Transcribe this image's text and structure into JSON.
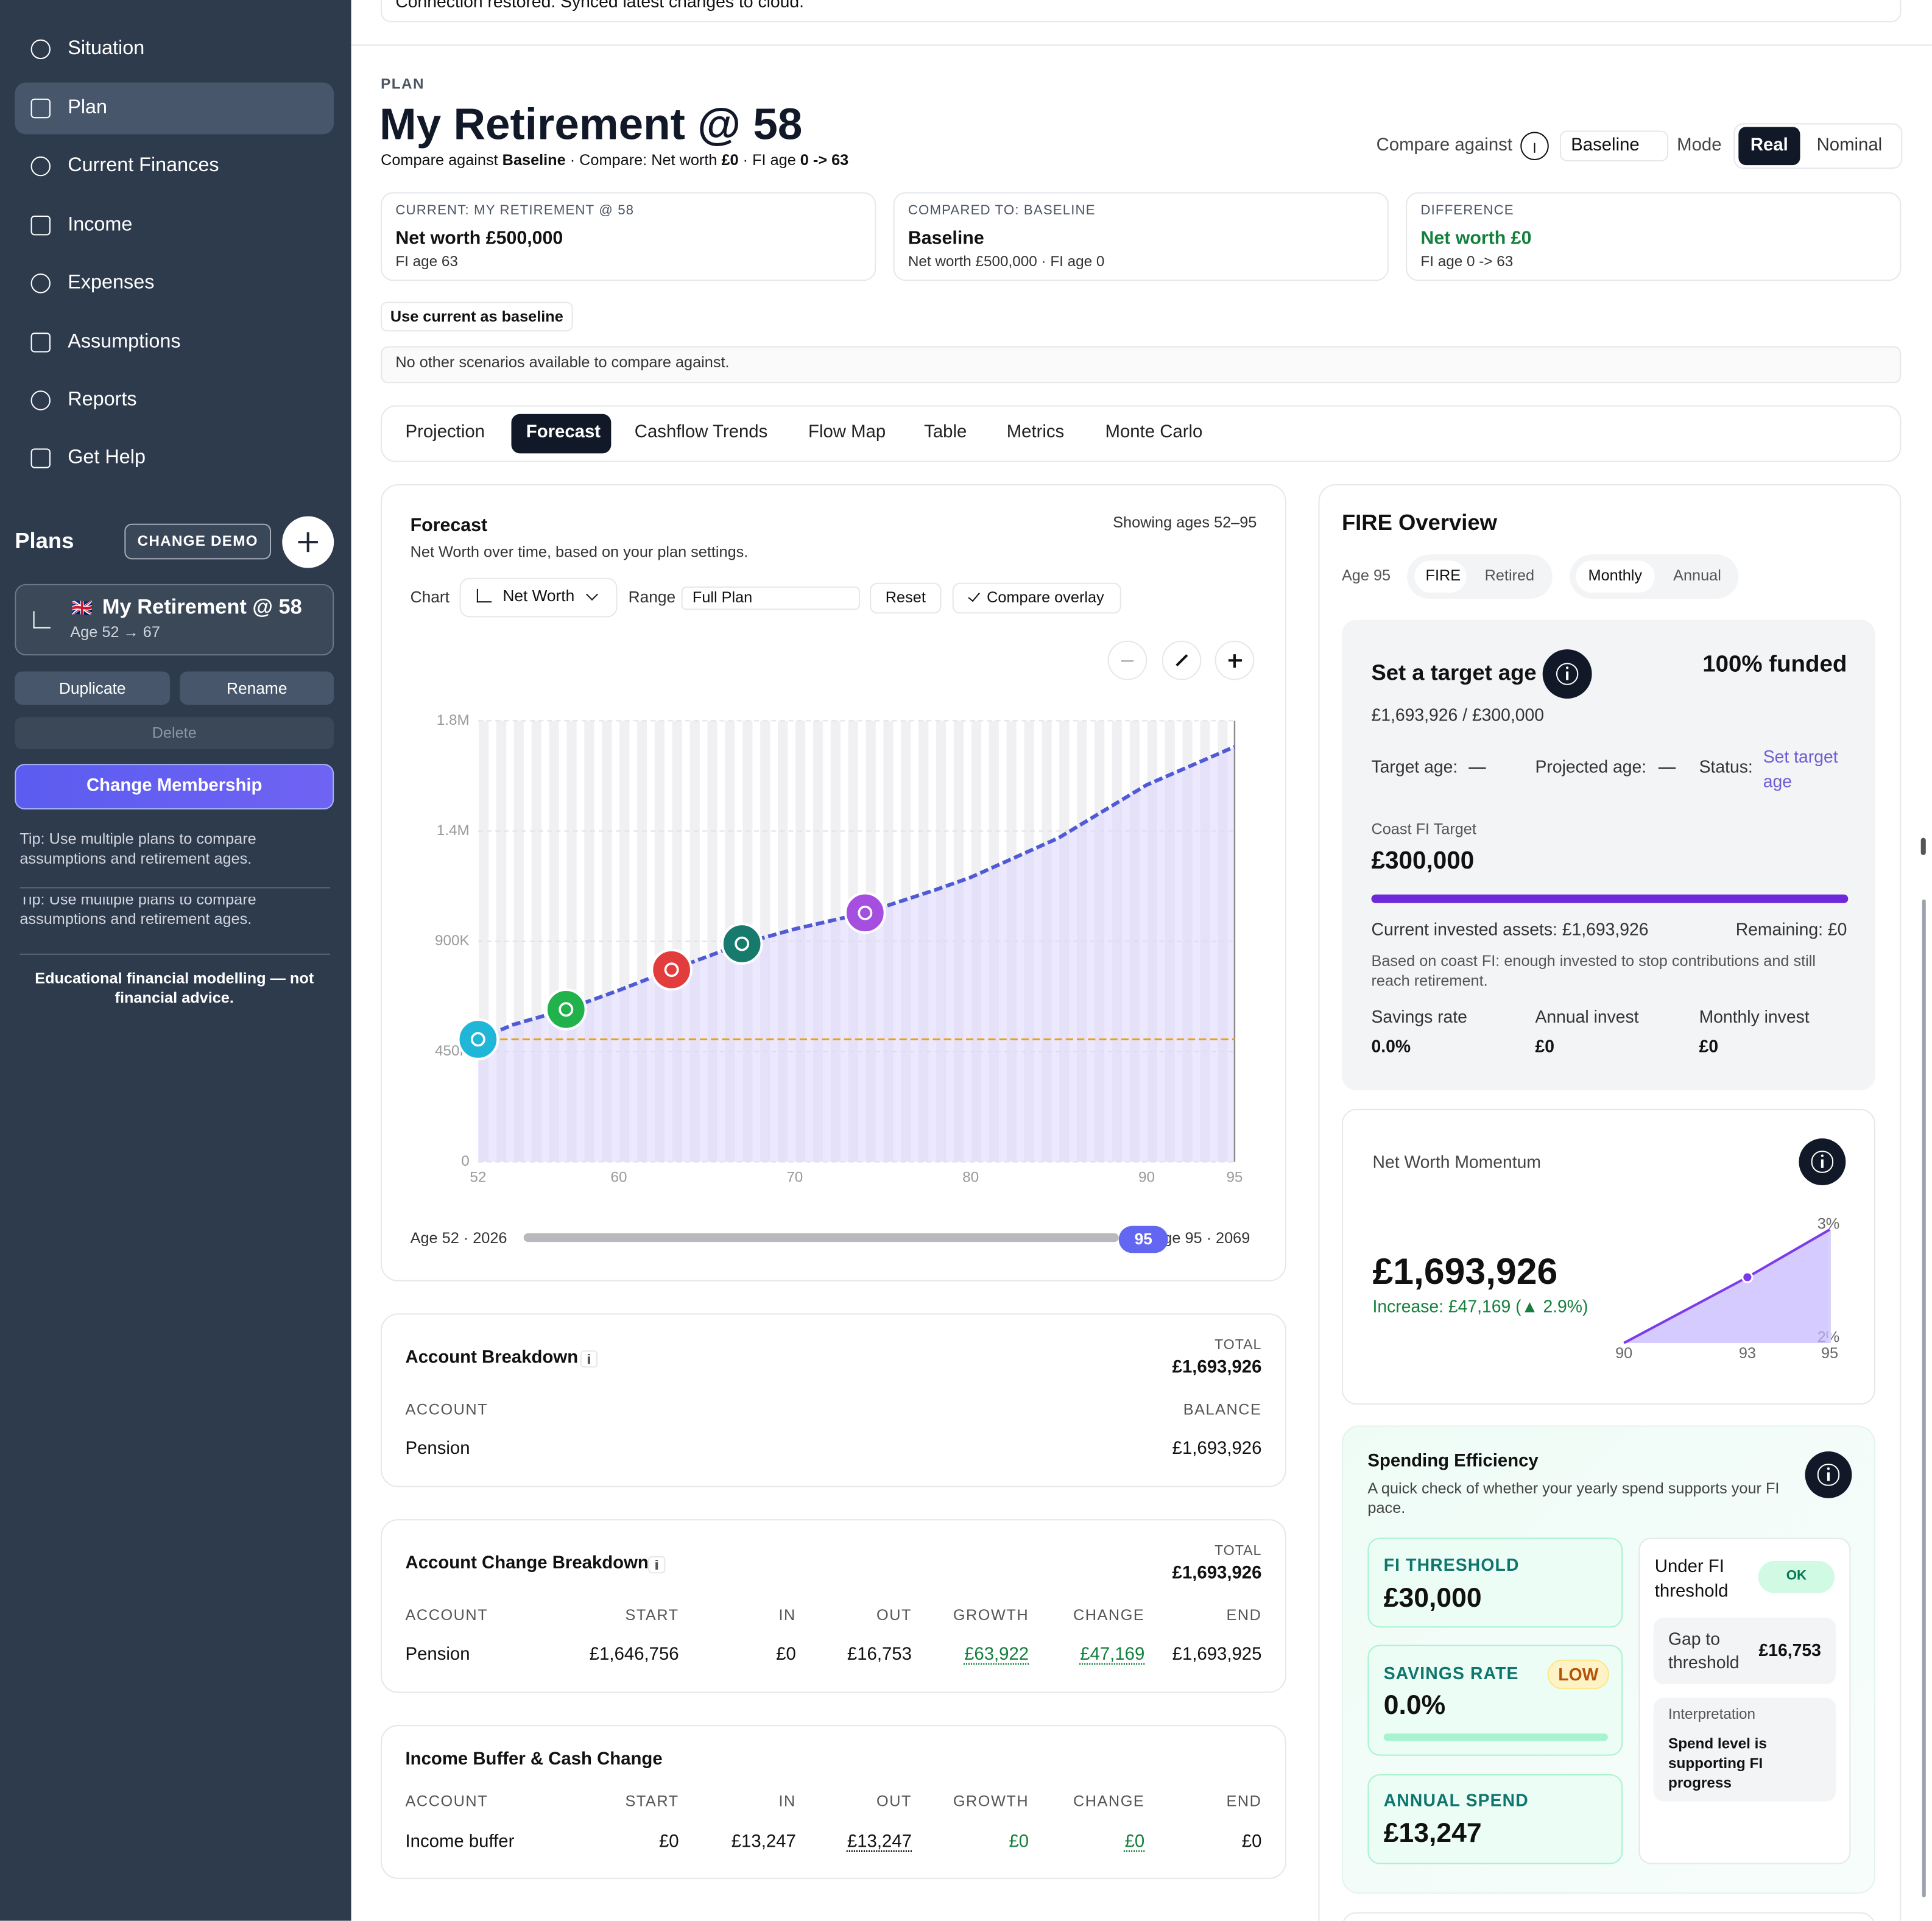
{
  "banner": "Connection restored. Synced latest changes to cloud.",
  "sidebar": {
    "nav": [
      "Situation",
      "Plan",
      "Current Finances",
      "Income",
      "Expenses",
      "Assumptions",
      "Reports",
      "Get Help"
    ],
    "plans_title": "Plans",
    "change_demo": "CHANGE DEMO",
    "plan": {
      "flag": "🇬🇧",
      "name": "My Retirement @ 58",
      "ages": "Age 52 → 67"
    },
    "actions": [
      "Duplicate",
      "Rename"
    ],
    "delete": "Delete",
    "membership": "Change Membership",
    "tips": [
      "Tip: Use multiple plans to compare assumptions and retirement ages.",
      "Tip: Use multiple plans to compare assumptions and retirement ages."
    ],
    "disclaimer": "Educational financial modelling — not financial advice."
  },
  "header": {
    "eyebrow": "PLAN",
    "title": "My Retirement @ 58",
    "subtitle": [
      "Compare against ",
      "Baseline",
      " · Compare: Net worth ",
      "£0",
      " · FI age ",
      "0 -> 63"
    ],
    "compare_label": "Compare against",
    "compare_value": "Baseline",
    "mode_label": "Mode",
    "modes": [
      "Real",
      "Nominal"
    ]
  },
  "summary": [
    {
      "label": "CURRENT: MY RETIREMENT @ 58",
      "value": "Net worth £500,000",
      "detail": "FI age 63"
    },
    {
      "label": "COMPARED TO: BASELINE",
      "value": "Baseline",
      "detail": "Net worth £500,000 · FI age 0"
    },
    {
      "label": "DIFFERENCE",
      "value": "Net worth £0",
      "detail": "FI age 0 -> 63"
    }
  ],
  "baseline_button": "Use current as baseline",
  "notice": "No other scenarios available to compare against.",
  "tabs": [
    "Projection",
    "Forecast",
    "Cashflow Trends",
    "Flow Map",
    "Table",
    "Metrics",
    "Monte Carlo"
  ],
  "forecast": {
    "title": "Forecast",
    "subtitle": "Net Worth over time, based on your plan settings.",
    "range_note": "Showing ages 52–95",
    "chart_label": "Chart",
    "chart_value": "Net Worth",
    "range_label": "Range",
    "range_value": "Full Plan",
    "reset": "Reset",
    "overlay": "Compare overlay",
    "slider_start": "Age 52 · 2026",
    "slider_value": "95",
    "slider_end": "Age 95 · 2069"
  },
  "chart_data": [
    {
      "type": "line",
      "area": true,
      "x": [
        52,
        54,
        57,
        60,
        63,
        67,
        70,
        74,
        78,
        80,
        85,
        90,
        95
      ],
      "values": [
        500000,
        560000,
        622000,
        700000,
        784000,
        890000,
        950000,
        1016000,
        1110000,
        1161000,
        1322000,
        1538000,
        1693926
      ],
      "color": "#4f5bd5",
      "area_color": "#ddd6fe",
      "xlim": [
        52,
        95
      ],
      "xticks": [
        52,
        60,
        70,
        80,
        90,
        95
      ],
      "ylim": [
        0,
        1800000
      ],
      "yticks": [
        0,
        {
          "value": 450000,
          "label": "450K"
        },
        {
          "value": 900000,
          "label": "900K"
        },
        {
          "value": 1350000,
          "label": "1.4M"
        },
        {
          "value": 1800000,
          "label": "1.8M"
        }
      ],
      "grid": true,
      "reference_line": {
        "value": 500000,
        "color": "#e8a317"
      },
      "milestones": [
        {
          "x": 52,
          "value": 500000,
          "color": "#1fb6d8"
        },
        {
          "x": 57,
          "value": 622000,
          "color": "#21b24b"
        },
        {
          "x": 63,
          "value": 784000,
          "color": "#e23c3c"
        },
        {
          "x": 67,
          "value": 890000,
          "color": "#167a6c"
        },
        {
          "x": 74,
          "value": 1016000,
          "color": "#a54ee0"
        }
      ]
    },
    {
      "type": "line",
      "area": true,
      "x": [
        90,
        93,
        95
      ],
      "values": [
        2,
        2.58,
        3
      ],
      "color": "#7c3aed",
      "area_color": "#c4b5fd",
      "xlim": [
        90,
        95
      ],
      "xticks": [
        90,
        93,
        95
      ],
      "ylim": [
        2,
        3
      ],
      "yticks": [
        {
          "value": 2,
          "label": "2%"
        },
        {
          "value": 3,
          "label": "3%"
        }
      ],
      "grid": false
    }
  ],
  "account_breakdown": {
    "title": "Account Breakdown",
    "total_label": "TOTAL",
    "total": "£1,693,926",
    "columns": [
      "ACCOUNT",
      "BALANCE"
    ],
    "rows": [
      [
        "Pension",
        "£1,693,926"
      ]
    ]
  },
  "change_breakdown": {
    "title": "Account Change Breakdown",
    "total_label": "TOTAL",
    "total": "£1,693,926",
    "columns": [
      "ACCOUNT",
      "START",
      "IN",
      "OUT",
      "GROWTH",
      "CHANGE",
      "END"
    ],
    "rows": [
      [
        "Pension",
        "£1,646,756",
        "£0",
        "£16,753",
        "£63,922",
        "£47,169",
        "£1,693,925"
      ]
    ]
  },
  "income_buffer": {
    "title": "Income Buffer & Cash Change",
    "columns": [
      "ACCOUNT",
      "START",
      "IN",
      "OUT",
      "GROWTH",
      "CHANGE",
      "END"
    ],
    "rows": [
      [
        "Income buffer",
        "£0",
        "£13,247",
        "£13,247",
        "£0",
        "£0",
        "£0"
      ]
    ]
  },
  "fire": {
    "title": "FIRE Overview",
    "age": "Age 95",
    "tabs1": [
      "FIRE",
      "Retired"
    ],
    "tabs2": [
      "Monthly",
      "Annual"
    ],
    "target_title": "Set a target age",
    "funded": "100% funded",
    "progress": "£1,693,926 / £300,000",
    "stats": [
      {
        "label": "Target age:",
        "value": "—"
      },
      {
        "label": "Projected age:",
        "value": "—"
      },
      {
        "label": "Status:",
        "value": "Set target age"
      }
    ],
    "coast_label": "Coast FI Target",
    "coast_value": "£300,000",
    "invested": "Current invested assets: £1,693,926",
    "remaining": "Remaining: £0",
    "note": "Based on coast FI: enough invested to stop contributions and still reach retirement.",
    "metrics": [
      {
        "label": "Savings rate",
        "value": "0.0%"
      },
      {
        "label": "Annual invest",
        "value": "£0"
      },
      {
        "label": "Monthly invest",
        "value": "£0"
      }
    ]
  },
  "momentum": {
    "title": "Net Worth Momentum",
    "value": "£1,693,926",
    "change": "Increase: £47,169 (▲ 2.9%)"
  },
  "efficiency": {
    "title": "Spending Efficiency",
    "subtitle": "A quick check of whether your yearly spend supports your FI pace.",
    "threshold_label": "FI THRESHOLD",
    "threshold": "£30,000",
    "savings_label": "SAVINGS RATE",
    "savings_badge": "LOW",
    "savings": "0.0%",
    "spend_label": "ANNUAL SPEND",
    "spend": "£13,247",
    "status": "Under FI threshold",
    "status_badge": "OK",
    "gap_label": "Gap to threshold",
    "gap": "£16,753",
    "interp_label": "Interpretation",
    "interp": "Spend level is supporting FI progress"
  }
}
